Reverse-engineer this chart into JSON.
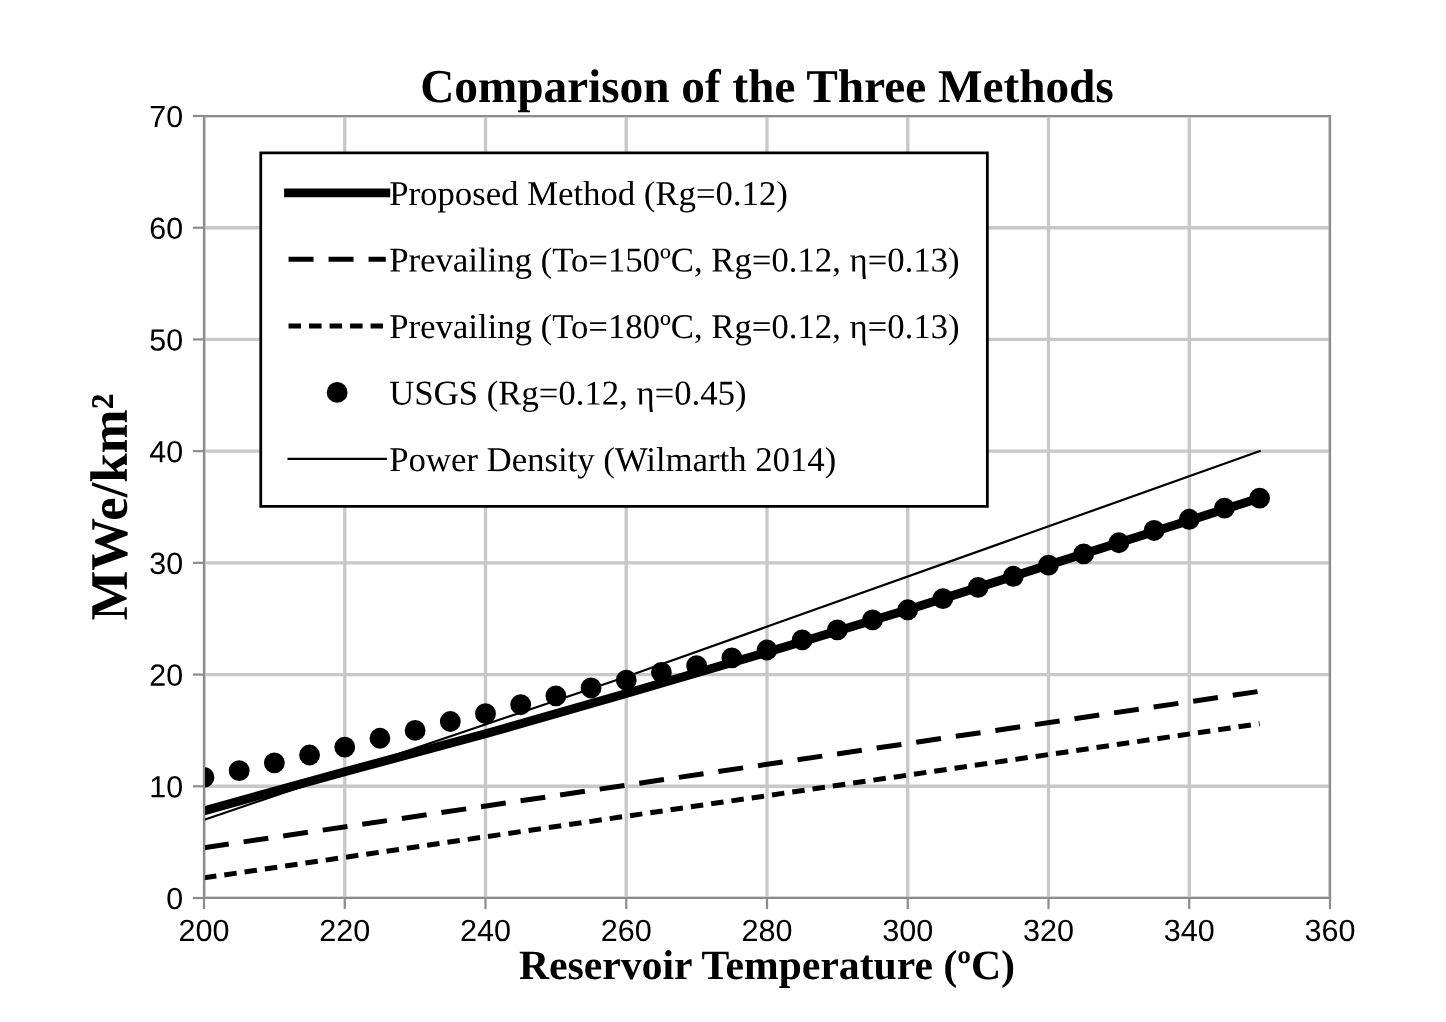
{
  "chart_data": {
    "type": "line",
    "title": "Comparison of the Three Methods",
    "xlabel": "Reservoir Temperature (ºC)",
    "ylabel": "MWe/km²",
    "xlim": [
      200,
      360
    ],
    "xticks": [
      200,
      220,
      240,
      260,
      280,
      300,
      320,
      340,
      360
    ],
    "ylim": [
      0,
      70
    ],
    "yticks": [
      0,
      10,
      20,
      30,
      40,
      50,
      60,
      70
    ],
    "grid": true,
    "legend": "top left",
    "series": [
      {
        "name": "Proposed Method (Rg=0.12)",
        "color": "#000000",
        "line_style": "solid",
        "x": [
          200,
          220,
          240,
          260,
          280,
          300,
          320,
          340,
          350
        ],
        "values": [
          7.8,
          11.3,
          14.7,
          18.3,
          22.0,
          25.8,
          29.8,
          33.8,
          35.8
        ]
      },
      {
        "name": "Prevailing (To=150ºC, Rg=0.12, η=0.13)",
        "color": "#000000",
        "line_style": "dashed",
        "x": [
          200,
          350
        ],
        "values": [
          4.5,
          18.5
        ]
      },
      {
        "name": "Prevailing (To=180ºC, Rg=0.12, η=0.13)",
        "color": "#000000",
        "line_style": "dashed",
        "x": [
          200,
          350
        ],
        "values": [
          1.8,
          15.6
        ]
      },
      {
        "name": "USGS (Rg=0.12, η=0.45)",
        "type": "scatter",
        "marker": "circle",
        "color": "#000000",
        "x": [
          200,
          205,
          210,
          215,
          220,
          225,
          230,
          235,
          240,
          245,
          250,
          255,
          260,
          265,
          270,
          275,
          280,
          285,
          290,
          295,
          300,
          305,
          310,
          315,
          320,
          325,
          330,
          335,
          340,
          345,
          350
        ],
        "values": [
          10.8,
          11.4,
          12.1,
          12.8,
          13.5,
          14.3,
          15.0,
          15.8,
          16.5,
          17.3,
          18.1,
          18.8,
          19.5,
          20.2,
          20.8,
          21.5,
          22.2,
          23.1,
          24.0,
          24.9,
          25.8,
          26.8,
          27.8,
          28.8,
          29.8,
          30.8,
          31.8,
          32.9,
          33.9,
          34.9,
          35.8
        ]
      },
      {
        "name": "Power Density (Wilmarth 2014)",
        "color": "#000000",
        "line_style": "solid",
        "x": [
          200,
          260,
          350
        ],
        "values": [
          7.0,
          19.8,
          40.0
        ]
      }
    ]
  }
}
